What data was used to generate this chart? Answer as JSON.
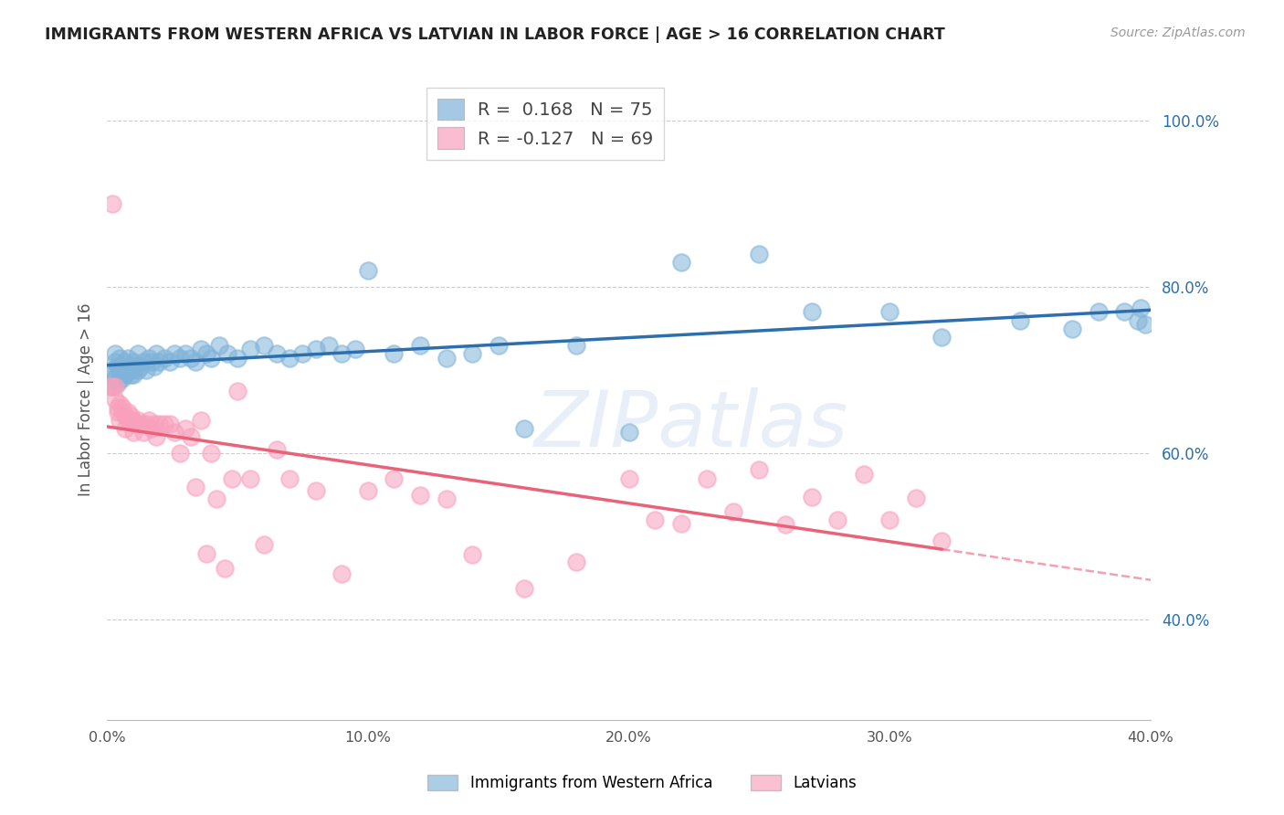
{
  "title": "IMMIGRANTS FROM WESTERN AFRICA VS LATVIAN IN LABOR FORCE | AGE > 16 CORRELATION CHART",
  "source": "Source: ZipAtlas.com",
  "ylabel": "In Labor Force | Age > 16",
  "xlim": [
    0.0,
    0.4
  ],
  "ylim": [
    0.28,
    1.05
  ],
  "yticks": [
    0.4,
    0.6,
    0.8,
    1.0
  ],
  "ytick_labels": [
    "40.0%",
    "60.0%",
    "80.0%",
    "100.0%"
  ],
  "xticks": [
    0.0,
    0.1,
    0.2,
    0.3,
    0.4
  ],
  "xtick_labels": [
    "0.0%",
    "10.0%",
    "20.0%",
    "30.0%",
    "40.0%"
  ],
  "blue_R": "0.168",
  "blue_N": "75",
  "pink_R": "-0.127",
  "pink_N": "69",
  "blue_color": "#7FB3D9",
  "pink_color": "#F9A0BC",
  "blue_trend_color": "#2C6FAC",
  "pink_trend_color": "#E8637A",
  "bg_color": "#FFFFFF",
  "watermark_text": "ZIPatlas",
  "legend_label_blue": "Immigrants from Western Africa",
  "legend_label_pink": "Latvians",
  "blue_x": [
    0.001,
    0.002,
    0.002,
    0.003,
    0.003,
    0.003,
    0.004,
    0.004,
    0.005,
    0.005,
    0.005,
    0.006,
    0.006,
    0.007,
    0.007,
    0.008,
    0.008,
    0.009,
    0.009,
    0.01,
    0.01,
    0.011,
    0.012,
    0.012,
    0.013,
    0.014,
    0.015,
    0.016,
    0.017,
    0.018,
    0.019,
    0.02,
    0.022,
    0.024,
    0.026,
    0.028,
    0.03,
    0.032,
    0.034,
    0.036,
    0.038,
    0.04,
    0.043,
    0.046,
    0.05,
    0.055,
    0.06,
    0.065,
    0.07,
    0.075,
    0.08,
    0.085,
    0.09,
    0.095,
    0.1,
    0.11,
    0.12,
    0.13,
    0.14,
    0.15,
    0.16,
    0.18,
    0.2,
    0.22,
    0.25,
    0.27,
    0.3,
    0.32,
    0.35,
    0.37,
    0.38,
    0.39,
    0.395,
    0.396,
    0.398
  ],
  "blue_y": [
    0.695,
    0.7,
    0.68,
    0.72,
    0.69,
    0.71,
    0.685,
    0.705,
    0.695,
    0.715,
    0.705,
    0.7,
    0.69,
    0.71,
    0.695,
    0.705,
    0.715,
    0.695,
    0.7,
    0.71,
    0.695,
    0.705,
    0.7,
    0.72,
    0.705,
    0.71,
    0.7,
    0.715,
    0.71,
    0.705,
    0.72,
    0.71,
    0.715,
    0.71,
    0.72,
    0.715,
    0.72,
    0.715,
    0.71,
    0.725,
    0.72,
    0.715,
    0.73,
    0.72,
    0.715,
    0.725,
    0.73,
    0.72,
    0.715,
    0.72,
    0.725,
    0.73,
    0.72,
    0.725,
    0.82,
    0.72,
    0.73,
    0.715,
    0.72,
    0.73,
    0.63,
    0.73,
    0.625,
    0.83,
    0.84,
    0.77,
    0.77,
    0.74,
    0.76,
    0.75,
    0.77,
    0.77,
    0.76,
    0.775,
    0.755
  ],
  "pink_x": [
    0.001,
    0.002,
    0.002,
    0.003,
    0.003,
    0.004,
    0.004,
    0.005,
    0.005,
    0.006,
    0.006,
    0.007,
    0.007,
    0.008,
    0.008,
    0.009,
    0.009,
    0.01,
    0.01,
    0.011,
    0.012,
    0.013,
    0.014,
    0.015,
    0.016,
    0.017,
    0.018,
    0.019,
    0.02,
    0.022,
    0.024,
    0.026,
    0.028,
    0.03,
    0.032,
    0.034,
    0.036,
    0.038,
    0.04,
    0.042,
    0.045,
    0.048,
    0.05,
    0.055,
    0.06,
    0.065,
    0.07,
    0.08,
    0.09,
    0.1,
    0.11,
    0.12,
    0.13,
    0.14,
    0.16,
    0.18,
    0.2,
    0.21,
    0.22,
    0.23,
    0.24,
    0.25,
    0.26,
    0.27,
    0.28,
    0.29,
    0.3,
    0.31,
    0.32
  ],
  "pink_y": [
    0.68,
    0.9,
    0.68,
    0.665,
    0.68,
    0.65,
    0.655,
    0.64,
    0.66,
    0.65,
    0.655,
    0.645,
    0.63,
    0.64,
    0.65,
    0.638,
    0.645,
    0.625,
    0.64,
    0.635,
    0.64,
    0.635,
    0.625,
    0.635,
    0.64,
    0.63,
    0.635,
    0.62,
    0.635,
    0.635,
    0.635,
    0.625,
    0.6,
    0.63,
    0.62,
    0.56,
    0.64,
    0.48,
    0.6,
    0.545,
    0.462,
    0.57,
    0.675,
    0.57,
    0.49,
    0.605,
    0.57,
    0.555,
    0.455,
    0.555,
    0.57,
    0.55,
    0.545,
    0.478,
    0.438,
    0.47,
    0.57,
    0.52,
    0.516,
    0.57,
    0.53,
    0.58,
    0.515,
    0.548,
    0.52,
    0.575,
    0.52,
    0.547,
    0.495
  ]
}
